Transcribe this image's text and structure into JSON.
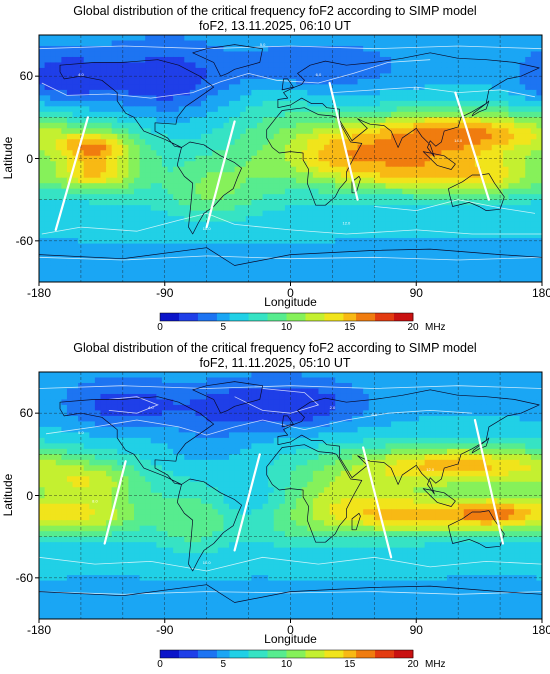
{
  "chart_data": [
    {
      "type": "heatmap",
      "title": "Global distribution of the critical frequency foF2 according to SIMP model",
      "subtitle": "foF2, 13.11.2025, 06:10 UT",
      "xlabel": "Longitude",
      "ylabel": "Latitude",
      "xlim": [
        -180,
        180
      ],
      "ylim": [
        -90,
        90
      ],
      "x_ticks": [
        -180,
        -90,
        0,
        90,
        180
      ],
      "y_ticks": [
        60,
        0,
        -60
      ],
      "colorbar": {
        "min": 0,
        "max": 20,
        "ticks": [
          0,
          5,
          10,
          15,
          20
        ],
        "unit": "MHz"
      },
      "contour_labels": [
        "4.0",
        "5.0",
        "6.0",
        "8.0",
        "10.0",
        "12.0",
        "14.0"
      ],
      "lines": [
        {
          "points": [
            [
              -145,
              30
            ],
            [
              -168,
              -52
            ]
          ]
        },
        {
          "points": [
            [
              -40,
              27
            ],
            [
              -60,
              -50
            ]
          ]
        },
        {
          "points": [
            [
              28,
              55
            ],
            [
              48,
              -30
            ]
          ]
        },
        {
          "points": [
            [
              118,
              48
            ],
            [
              142,
              -30
            ]
          ]
        }
      ]
    },
    {
      "type": "heatmap",
      "title": "Global distribution of the critical frequency foF2 according to SIMP model",
      "subtitle": "foF2, 11.11.2025, 05:10 UT",
      "xlabel": "Longitude",
      "ylabel": "Latitude",
      "xlim": [
        -180,
        180
      ],
      "ylim": [
        -90,
        90
      ],
      "x_ticks": [
        -180,
        -90,
        0,
        90,
        180
      ],
      "y_ticks": [
        60,
        0,
        -60
      ],
      "colorbar": {
        "min": 0,
        "max": 20,
        "ticks": [
          0,
          5,
          10,
          15,
          20
        ],
        "unit": "MHz"
      },
      "contour_labels": [
        "2.0",
        "4.0",
        "5.0",
        "6.0",
        "8.0",
        "10.0",
        "12.0"
      ],
      "lines": [
        {
          "points": [
            [
              -118,
              25
            ],
            [
              -133,
              -35
            ]
          ]
        },
        {
          "points": [
            [
              -22,
              30
            ],
            [
              -40,
              -40
            ]
          ]
        },
        {
          "points": [
            [
              52,
              35
            ],
            [
              72,
              -45
            ]
          ]
        },
        {
          "points": [
            [
              132,
              55
            ],
            [
              152,
              -35
            ]
          ]
        }
      ]
    }
  ],
  "colorscale": [
    "#0b15c9",
    "#1f3fe8",
    "#1d74f2",
    "#1aa6f4",
    "#21d0e6",
    "#36e3c4",
    "#57ec8f",
    "#86f15a",
    "#c4f030",
    "#f1e41b",
    "#f8b914",
    "#f07c0f",
    "#e33b10",
    "#c91111"
  ]
}
